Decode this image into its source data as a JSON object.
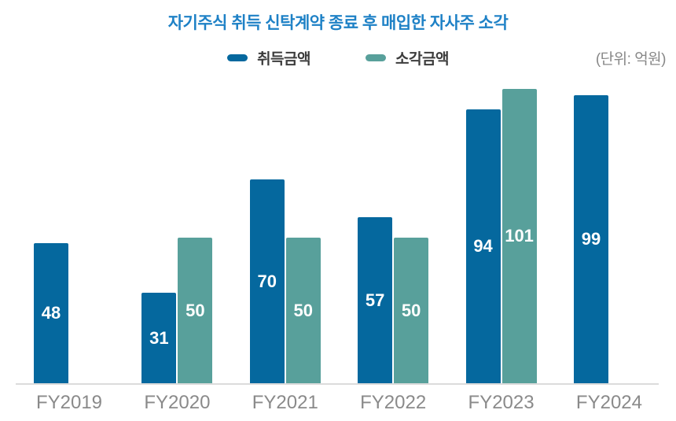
{
  "chart_data": {
    "type": "bar",
    "title": "자기주식 취득 신탁계약 종료 후 매입한 자사주 소각",
    "unit_label": "(단위: 억원)",
    "categories": [
      "FY2019",
      "FY2020",
      "FY2021",
      "FY2022",
      "FY2023",
      "FY2024"
    ],
    "series": [
      {
        "name": "취득금액",
        "color_key": "acquired",
        "values": [
          48,
          31,
          70,
          57,
          94,
          99
        ]
      },
      {
        "name": "소각금액",
        "color_key": "retired",
        "values": [
          null,
          50,
          50,
          50,
          101,
          null
        ]
      }
    ],
    "ylim": [
      0,
      105
    ],
    "grid": false,
    "legend_position": "top",
    "value_labels": "inside-center"
  },
  "legend": [
    {
      "label": "취득금액",
      "color_key": "acquired"
    },
    {
      "label": "소각금액",
      "color_key": "retired"
    }
  ],
  "colors": {
    "acquired": "#05689e",
    "retired": "#58a09b",
    "title": "#1e81c6",
    "axis_line": "#dbdbdb",
    "tick_label": "#8a8a8a",
    "unit_text": "#878787",
    "legend_text": "#3c3c3c",
    "value_label": "#ffffff"
  }
}
